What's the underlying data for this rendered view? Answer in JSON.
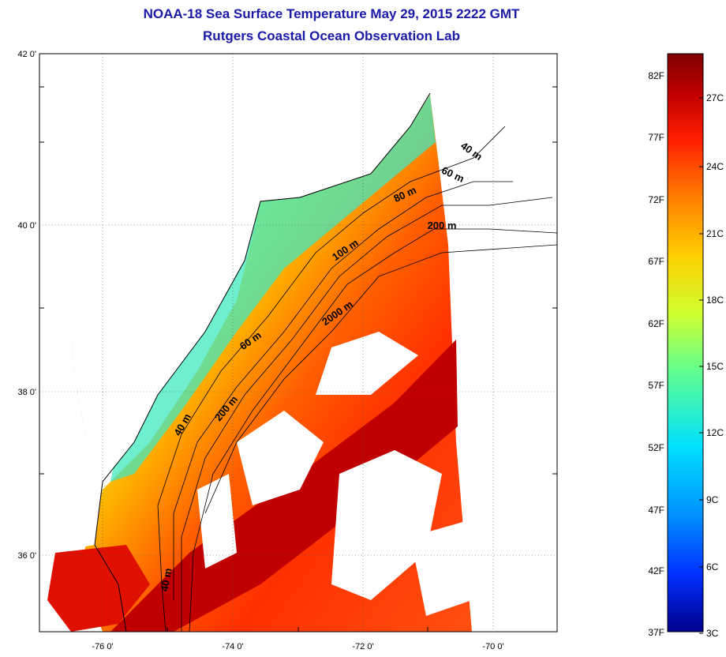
{
  "header": {
    "title": "NOAA-18 Sea Surface Temperature May 29, 2015 2222 GMT",
    "subtitle": "Rutgers Coastal Ocean Observation Lab"
  },
  "map": {
    "lon_labels": [
      "-76 0'",
      "-74 0'",
      "-72 0'",
      "-70 0'"
    ],
    "lat_labels": [
      "42 0'",
      "40 0'",
      "38 0'",
      "36 0'"
    ],
    "grid": "dotted",
    "isobath_labels": [
      "40 m",
      "60 m",
      "80 m",
      "200 m",
      "100 m",
      "2000 m",
      "60 m",
      "200 m",
      "40 m",
      "40 m"
    ]
  },
  "colorbar": {
    "fahrenheit_labels": [
      "82F",
      "77F",
      "72F",
      "67F",
      "62F",
      "57F",
      "52F",
      "47F",
      "42F",
      "37F"
    ],
    "celsius_labels": [
      "27C",
      "24C",
      "21C",
      "18C",
      "15C",
      "12C",
      "9C",
      "6C",
      "3C"
    ],
    "colors": [
      "#800000",
      "#c00000",
      "#ff2000",
      "#ff8000",
      "#ffd000",
      "#d0ff30",
      "#60ff90",
      "#00e0ff",
      "#0090ff",
      "#0030ff",
      "#00008c"
    ]
  }
}
